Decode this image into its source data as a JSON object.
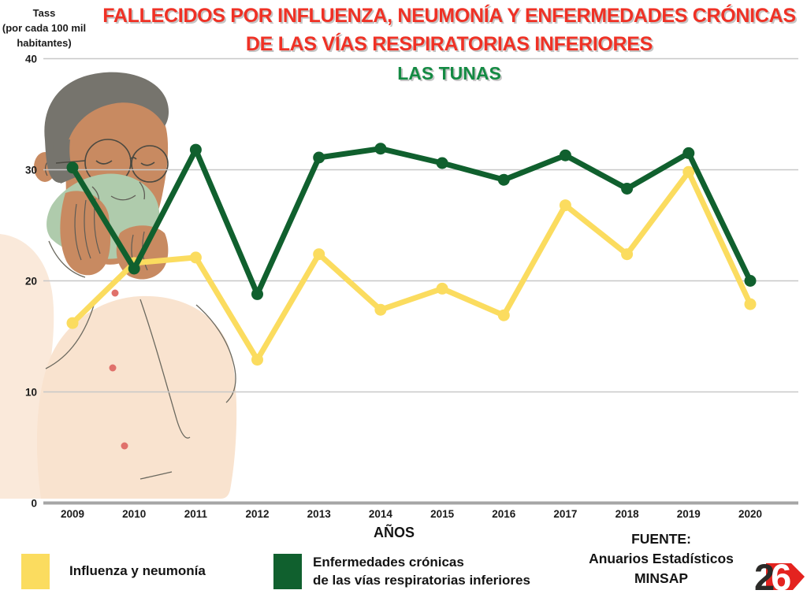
{
  "axes": {
    "y_title_lines": [
      "Tass",
      "(por cada 100 mil",
      "habitantes)"
    ],
    "x_title": "AÑOS"
  },
  "titles": {
    "main_line1": "FALLECIDOS POR INFLUENZA, NEUMONÍA Y ENFERMEDADES CRÓNICAS",
    "main_line2": "DE LAS VÍAS RESPIRATORIAS INFERIORES",
    "region": "LAS TUNAS",
    "main_color": "#EF3125",
    "region_color": "#148A43"
  },
  "chart_data": {
    "type": "line",
    "title": "FALLECIDOS POR INFLUENZA, NEUMONÍA Y ENFERMEDADES CRÓNICAS DE LAS VÍAS RESPIRATORIAS INFERIORES — LAS TUNAS",
    "categories": [
      "2009",
      "2010",
      "2011",
      "2012",
      "2013",
      "2014",
      "2015",
      "2016",
      "2017",
      "2018",
      "2019",
      "2020"
    ],
    "series": [
      {
        "name": "Influenza y neumonía",
        "color": "#FBDC5F",
        "values": [
          16.2,
          21.6,
          22.1,
          12.9,
          22.4,
          17.4,
          19.3,
          16.9,
          26.8,
          22.4,
          29.8,
          17.9
        ]
      },
      {
        "name": "Enfermedades crónicas de las vías respiratorias inferiores",
        "color": "#10602E",
        "values": [
          30.2,
          21.1,
          31.8,
          18.8,
          31.1,
          31.9,
          30.6,
          29.1,
          31.3,
          28.3,
          31.5,
          20.0
        ]
      }
    ],
    "xlabel": "AÑOS",
    "ylabel": "Tass (por cada 100 mil habitantes)",
    "ylim": [
      0,
      40
    ],
    "yticks": [
      0,
      10,
      20,
      30,
      40
    ],
    "grid": true,
    "grid_color": "#C8C8C8",
    "axis_color": "#A6A6A6",
    "legend_position": "bottom"
  },
  "legend": {
    "items": [
      {
        "label_lines": [
          "Influenza y neumonía"
        ],
        "color": "#FBDC5F"
      },
      {
        "label_lines": [
          "Enfermedades crónicas",
          "de las vías respiratorias inferiores"
        ],
        "color": "#10602E"
      }
    ]
  },
  "source": {
    "lines": [
      "FUENTE:",
      "Anuarios Estadísticos",
      "MINSAP"
    ]
  },
  "logo26": {
    "digit_dark": "2",
    "digit_light": "6",
    "red": "#E4231F"
  }
}
